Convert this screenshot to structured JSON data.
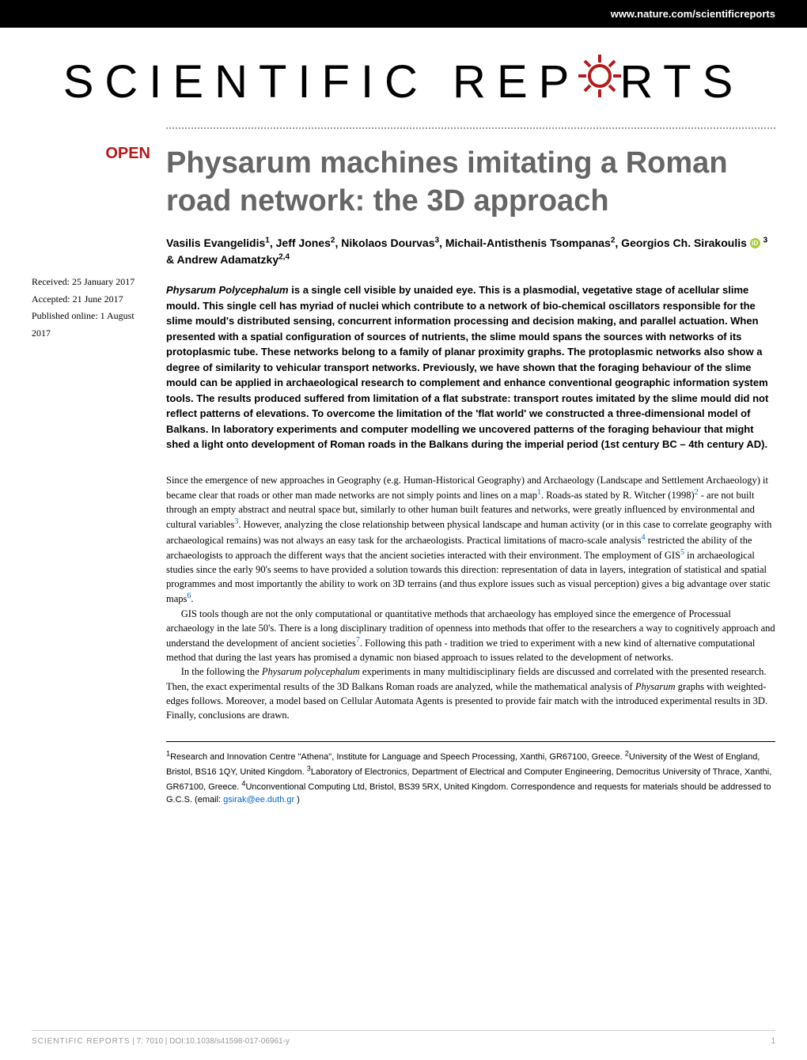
{
  "header": {
    "url": "www.nature.com/scientificreports"
  },
  "journal": {
    "logo_part1": "SCIENTIFIC REP",
    "logo_part2": "RTS",
    "gear_color": "#b31b1b"
  },
  "badge": {
    "open": "OPEN"
  },
  "dates": {
    "received": "Received: 25 January 2017",
    "accepted": "Accepted: 21 June 2017",
    "published": "Published online: 1 August 2017"
  },
  "article": {
    "title": "Physarum machines imitating a Roman road network: the 3D approach",
    "authors_html": "Vasilis Evangelidis<sup>1</sup>, Jeff Jones<sup>2</sup>, Nikolaos Dourvas<sup>3</sup>, Michail-Antisthenis Tsompanas<sup>2</sup>, Georgios Ch. Sirakoulis",
    "authors_tail": "<sup>3</sup> & Andrew Adamatzky<sup>2,4</sup>",
    "abstract": "<em>Physarum Polycephalum</em> is a single cell visible by unaided eye. This is a plasmodial, vegetative stage of acellular slime mould. This single cell has myriad of nuclei which contribute to a network of bio-chemical oscillators responsible for the slime mould's distributed sensing, concurrent information processing and decision making, and parallel actuation. When presented with a spatial configuration of sources of nutrients, the slime mould spans the sources with networks of its protoplasmic tube. These networks belong to a family of planar proximity graphs. The protoplasmic networks also show a degree of similarity to vehicular transport networks. Previously, we have shown that the foraging behaviour of the slime mould can be applied in archaeological research to complement and enhance conventional geographic information system tools. The results produced suffered from limitation of a flat substrate: transport routes imitated by the slime mould did not reflect patterns of elevations. To overcome the limitation of the 'flat world' we constructed a three-dimensional model of Balkans. In laboratory experiments and computer modelling we uncovered patterns of the foraging behaviour that might shed a light onto development of Roman roads in the Balkans during the imperial period (1st century BC – 4th century AD).",
    "body_p1": "Since the emergence of new approaches in Geography (e.g. Human-Historical Geography) and Archaeology (Landscape and Settlement Archaeology) it became clear that roads or other man made networks are not simply points and lines on a map<sup class=\"ref-link\">1</sup>. Roads-as stated by R. Witcher (1998)<sup class=\"ref-link\">2</sup> - are not built through an empty abstract and neutral space but, similarly to other human built features and networks, were greatly influenced by environmental and cultural variables<sup class=\"ref-link\">3</sup>. However, analyzing the close relationship between physical landscape and human activity (or in this case to correlate geography with archaeological remains) was not always an easy task for the archaeologists. Practical limitations of macro-scale analysis<sup class=\"ref-link\">4</sup> restricted the ability of the archaeologists to approach the different ways that the ancient societies interacted with their environment. The employment of GIS<sup class=\"ref-link\">5</sup> in archaeological studies since the early 90's seems to have provided a solution towards this direction: representation of data in layers, integration of statistical and spatial programmes and most importantly the ability to work on 3D terrains (and thus explore issues such as visual perception) gives a big advantage over static maps<sup class=\"ref-link\">6</sup>.",
    "body_p2": "GIS tools though are not the only computational or quantitative methods that archaeology has employed since the emergence of Processual archaeology in the late 50's. There is a long disciplinary tradition of openness into methods that offer to the researchers a way to cognitively approach and understand the development of ancient societies<sup class=\"ref-link\">7</sup>. Following this path - tradition we tried to experiment with a new kind of alternative computational method that during the last years has promised a dynamic non biased approach to issues related to the development of networks.",
    "body_p3": "In the following the <em>Physarum polycephalum</em> experiments in many multidisciplinary fields are discussed and correlated with the presented research. Then, the exact experimental results of the 3D Balkans Roman roads are analyzed, while the mathematical analysis of <em>Physarum</em> graphs with weighted-edges follows. Moreover, a model based on Cellular Automata Agents is presented to provide fair match with the introduced experimental results in 3D. Finally, conclusions are drawn.",
    "affiliations": "<sup>1</sup>Research and Innovation Centre \"Athena\", Institute for Language and Speech Processing, Xanthi, GR67100, Greece. <sup>2</sup>University of the West of England, Bristol, BS16 1QY, United Kingdom. <sup>3</sup>Laboratory of Electronics, Department of Electrical and Computer Engineering, Democritus University of Thrace, Xanthi, GR67100, Greece. <sup>4</sup>Unconventional Computing Ltd, Bristol, BS39 5RX, United Kingdom. Correspondence and requests for materials should be addressed to G.C.S. (email: ",
    "email": "gsirak@ee.duth.gr",
    "affil_tail": ")"
  },
  "footer": {
    "left_label": "SCIENTIFIC REPORTS",
    "citation": " | 7: 7010 | DOI:10.1038/s41598-017-06961-y",
    "page": "1"
  },
  "colors": {
    "accent": "#b31b1b",
    "link": "#0066cc",
    "title_gray": "#666666",
    "footer_gray": "#999999"
  }
}
